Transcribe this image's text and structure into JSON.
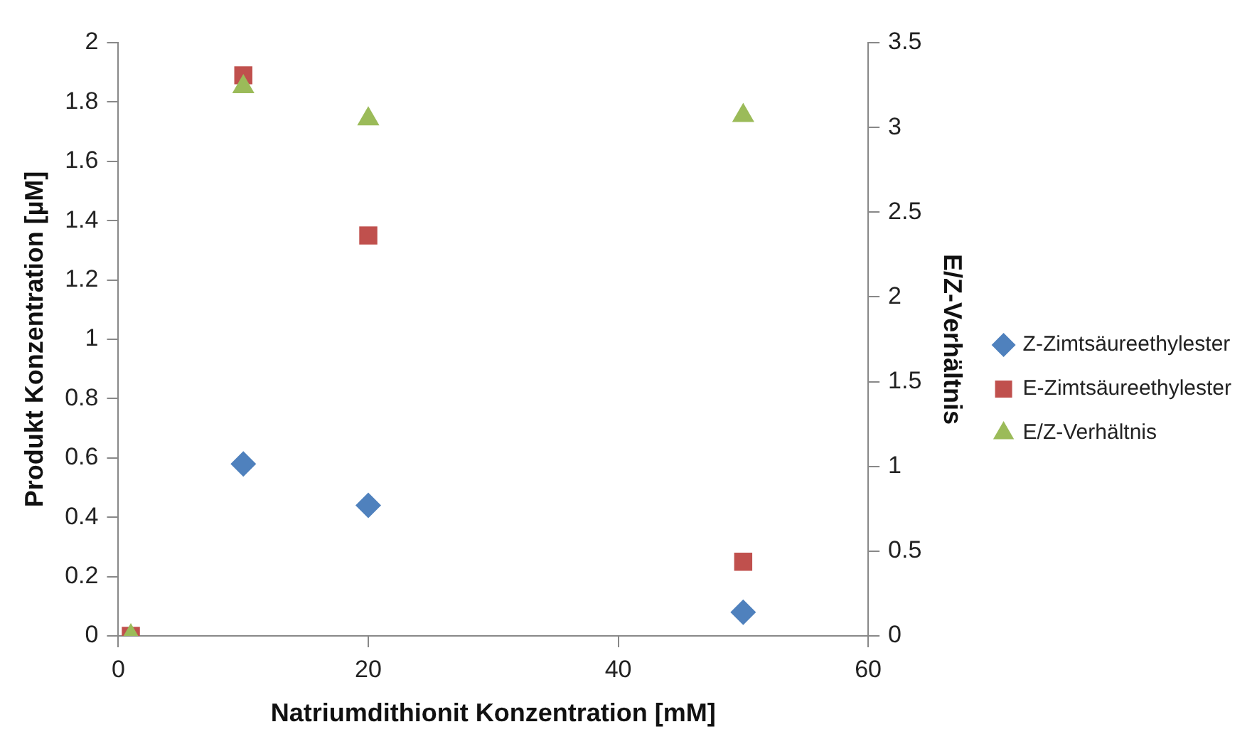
{
  "chart_data": {
    "type": "scatter",
    "xlabel": "Natriumdithionit Konzentration [mM]",
    "ylabel": "Produkt Konzentration [µM]",
    "y2label": "E/Z-Verhältnis",
    "x": [
      1,
      10,
      20,
      50
    ],
    "series": [
      {
        "name": "Z-Zimtsäureethylester",
        "color": "#4f81bd",
        "marker": "diamond",
        "values": [
          null,
          0.58,
          0.44,
          0.08
        ]
      },
      {
        "name": "E-Zimtsäureethylester",
        "color": "#c0504d",
        "marker": "square",
        "values": [
          0,
          1.89,
          1.35,
          0.25
        ]
      },
      {
        "name": "E/Z-Verhältnis",
        "color": "#9bbb59",
        "marker": "triangle",
        "axis": "y2",
        "values": [
          0,
          3.24,
          3.05,
          3.07
        ]
      }
    ],
    "xlim": [
      0,
      60
    ],
    "xticks": [
      0,
      20,
      40,
      60
    ],
    "ylim": [
      0,
      2
    ],
    "yticks": [
      0,
      0.2,
      0.4,
      0.6,
      0.8,
      1,
      1.2,
      1.4,
      1.6,
      1.8,
      2
    ],
    "y2lim": [
      0,
      3.5
    ],
    "y2ticks": [
      0,
      0.5,
      1,
      1.5,
      2,
      2.5,
      3,
      3.5
    ],
    "grid": false,
    "legend": "right"
  }
}
